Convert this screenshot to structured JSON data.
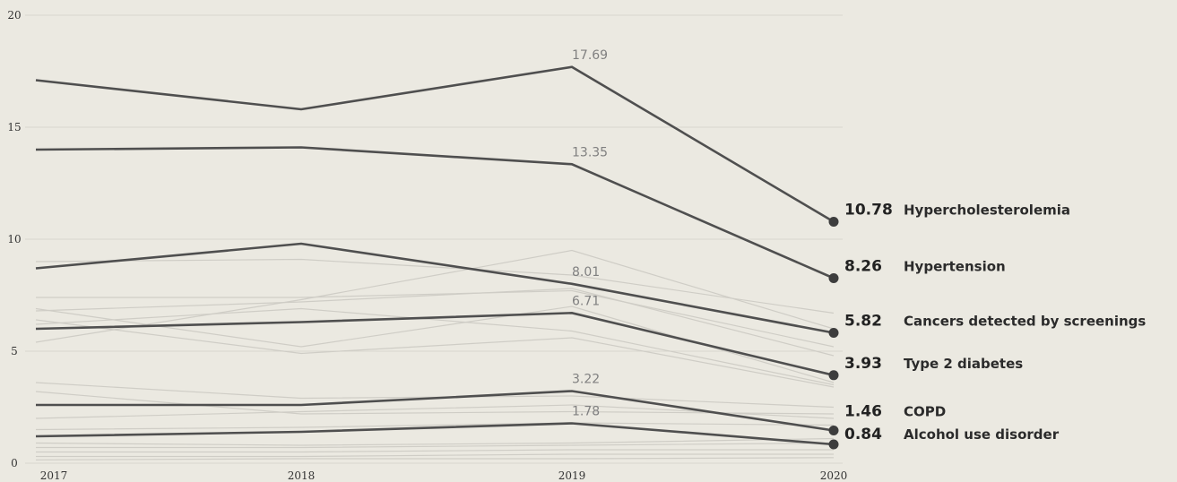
{
  "chart_data": {
    "type": "line",
    "title": "",
    "xlabel": "",
    "ylabel": "",
    "x": [
      "2017",
      "2018",
      "2019",
      "2020"
    ],
    "ylim": [
      0,
      20
    ],
    "yticks": [
      "0",
      "5",
      "10",
      "15",
      "20"
    ],
    "grid": true,
    "series": [
      {
        "name": "Hypercholesterolemia",
        "values": [
          17.1,
          15.8,
          17.69,
          10.78
        ],
        "label_2019": "17.69",
        "label_2020": "10.78"
      },
      {
        "name": "Hypertension",
        "values": [
          14.0,
          14.1,
          13.35,
          8.26
        ],
        "label_2019": "13.35",
        "label_2020": "8.26"
      },
      {
        "name": "Cancers detected by screenings",
        "values": [
          8.7,
          9.8,
          8.01,
          5.82
        ],
        "label_2019": "8.01",
        "label_2020": "5.82"
      },
      {
        "name": "Type 2 diabetes",
        "values": [
          6.0,
          6.3,
          6.71,
          3.93
        ],
        "label_2019": "6.71",
        "label_2020": "3.93"
      },
      {
        "name": "COPD",
        "values": [
          2.6,
          2.6,
          3.22,
          1.46
        ],
        "label_2019": "3.22",
        "label_2020": "1.46"
      },
      {
        "name": "Alcohol use disorder",
        "values": [
          1.2,
          1.4,
          1.78,
          0.84
        ],
        "label_2019": "1.78",
        "label_2020": "0.84"
      }
    ],
    "background_series": [
      [
        9.0,
        9.1,
        8.4,
        6.7
      ],
      [
        5.4,
        7.3,
        9.5,
        6.0
      ],
      [
        7.4,
        7.4,
        7.7,
        5.2
      ],
      [
        6.8,
        7.2,
        7.8,
        4.8
      ],
      [
        6.9,
        5.2,
        7.0,
        3.6
      ],
      [
        6.4,
        4.9,
        5.6,
        3.4
      ],
      [
        6.2,
        6.9,
        5.9,
        3.5
      ],
      [
        3.6,
        2.9,
        3.0,
        2.5
      ],
      [
        3.2,
        2.2,
        2.3,
        2.2
      ],
      [
        2.0,
        2.3,
        2.6,
        2.0
      ],
      [
        1.5,
        1.6,
        1.8,
        1.7
      ],
      [
        0.9,
        0.8,
        0.9,
        1.1
      ],
      [
        0.7,
        0.7,
        0.8,
        0.9
      ],
      [
        0.5,
        0.5,
        0.6,
        0.6
      ],
      [
        0.3,
        0.3,
        0.4,
        0.4
      ],
      [
        0.15,
        0.2,
        0.2,
        0.25
      ]
    ],
    "colors": {
      "highlight": "#4f4f4f",
      "background_line": "#cfcdc6",
      "grid": "#d9d7cf",
      "background": "#ebe9e1"
    }
  }
}
